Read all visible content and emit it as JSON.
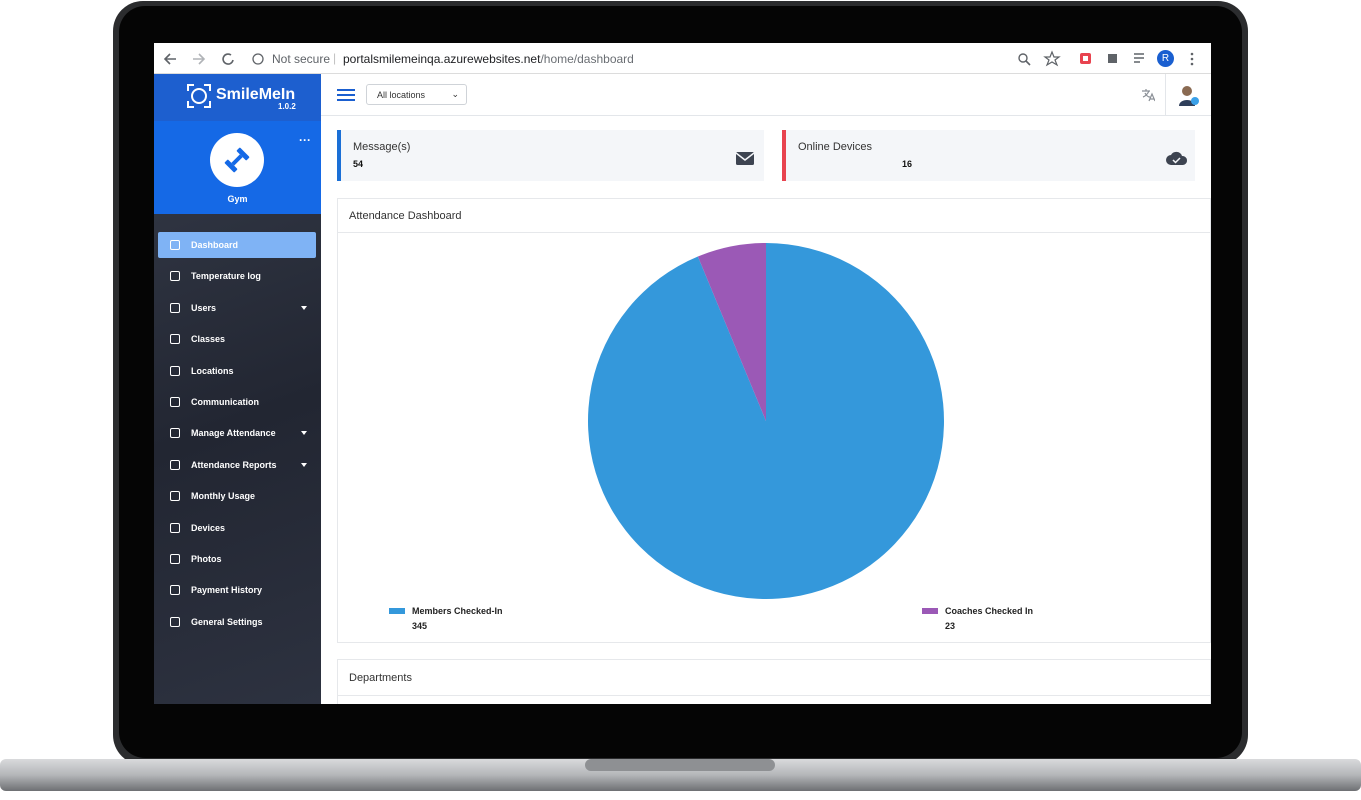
{
  "browser": {
    "security": "Not secure",
    "url_host": "portalsmilemeinqa.azurewebsites.net",
    "url_path": "/home/dashboard",
    "profile_initial": "R"
  },
  "sidebar": {
    "app_name": "SmileMeIn",
    "version": "1.0.2",
    "organization": "Gym",
    "menu": [
      {
        "label": "Dashboard",
        "active": true
      },
      {
        "label": "Temperature log"
      },
      {
        "label": "Users",
        "expandable": true
      },
      {
        "label": "Classes"
      },
      {
        "label": "Locations"
      },
      {
        "label": "Communication"
      },
      {
        "label": "Manage Attendance",
        "expandable": true
      },
      {
        "label": "Attendance Reports",
        "expandable": true
      },
      {
        "label": "Monthly Usage"
      },
      {
        "label": "Devices"
      },
      {
        "label": "Photos"
      },
      {
        "label": "Payment History"
      },
      {
        "label": "General Settings"
      }
    ]
  },
  "topbar": {
    "location_select": "All locations"
  },
  "cards": [
    {
      "label": "Message(s)",
      "value": 54,
      "accent": "#1a6fd6"
    },
    {
      "label": "Online Devices",
      "value": 16,
      "accent": "#e8434f"
    }
  ],
  "chart_data": {
    "type": "pie",
    "title": "Attendance Dashboard",
    "categories": [
      "Members Checked-In",
      "Coaches Checked In"
    ],
    "values": [
      345,
      23
    ],
    "colors": [
      "#3498db",
      "#9b59b6"
    ]
  },
  "departments": {
    "title": "Departments"
  }
}
